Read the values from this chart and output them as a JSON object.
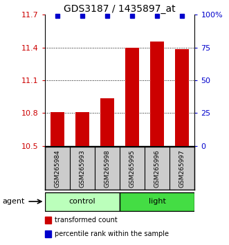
{
  "title": "GDS3187 / 1435897_at",
  "samples": [
    "GSM265984",
    "GSM265993",
    "GSM265998",
    "GSM265995",
    "GSM265996",
    "GSM265997"
  ],
  "bar_values": [
    10.805,
    10.805,
    10.935,
    11.4,
    11.455,
    11.385
  ],
  "percentile_values": [
    100,
    100,
    100,
    100,
    100,
    100
  ],
  "bar_color": "#cc0000",
  "dot_color": "#0000cc",
  "ylim_left": [
    10.5,
    11.7
  ],
  "ylim_right": [
    0,
    100
  ],
  "yticks_left": [
    10.5,
    10.8,
    11.1,
    11.4,
    11.7
  ],
  "yticks_right": [
    0,
    25,
    50,
    75,
    100
  ],
  "ytick_labels_left": [
    "10.5",
    "10.8",
    "11.1",
    "11.4",
    "11.7"
  ],
  "ytick_labels_right": [
    "0",
    "25",
    "50",
    "75",
    "100%"
  ],
  "groups": [
    {
      "label": "control",
      "span": [
        0,
        2
      ],
      "color": "#bbffbb"
    },
    {
      "label": "light",
      "span": [
        3,
        5
      ],
      "color": "#44dd44"
    }
  ],
  "group_row_label": "agent",
  "legend_items": [
    {
      "label": "transformed count",
      "color": "#cc0000"
    },
    {
      "label": "percentile rank within the sample",
      "color": "#0000cc"
    }
  ],
  "bar_width": 0.55,
  "bar_bottom": 10.5,
  "sample_bg": "#cccccc",
  "n_samples": 6
}
